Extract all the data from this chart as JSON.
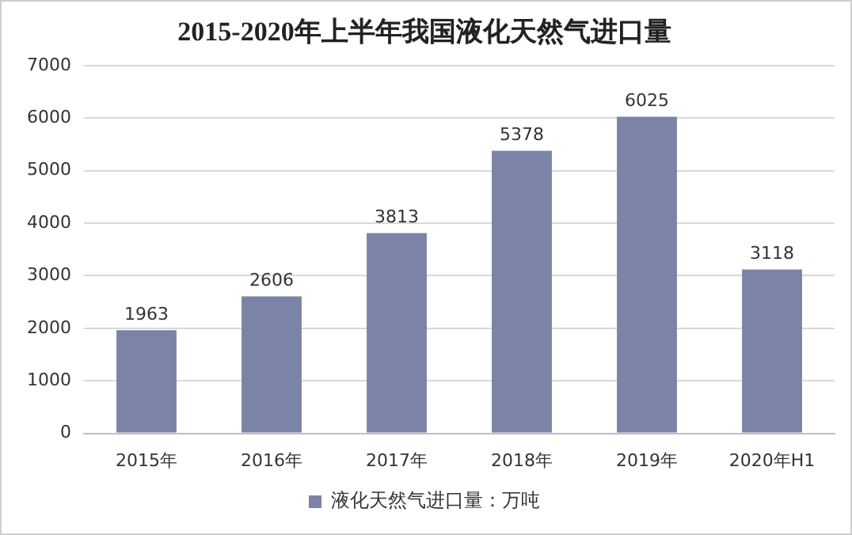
{
  "chart_data": {
    "type": "bar",
    "title": "2015-2020年上半年我国液化天然气进口量",
    "categories": [
      "2015年",
      "2016年",
      "2017年",
      "2018年",
      "2019年",
      "2020年H1"
    ],
    "series": [
      {
        "name": "液化天然气进口量：万吨",
        "color": "#7b83a6",
        "values": [
          1963,
          2606,
          3813,
          5378,
          6025,
          3118
        ]
      }
    ],
    "ylim": [
      0,
      7000
    ],
    "yticks": [
      0,
      1000,
      2000,
      3000,
      4000,
      5000,
      6000,
      7000
    ],
    "grid": "y",
    "legend": "bottom",
    "data_labels": true
  }
}
